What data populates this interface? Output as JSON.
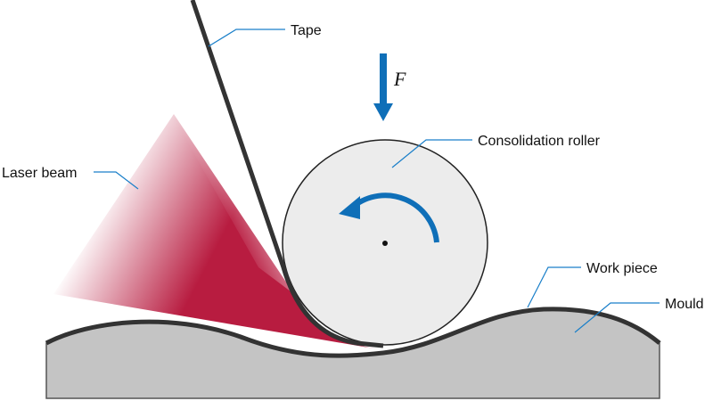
{
  "labels": {
    "tape": "Tape",
    "force": "F",
    "roller": "Consolidation roller",
    "laser": "Laser beam",
    "workpiece": "Work piece",
    "mould": "Mould"
  },
  "colors": {
    "laser": "#b81c40",
    "leader": "#1a7fc9",
    "arrow": "#0f6fb8",
    "roller": "#ececec",
    "mould": "#c4c4c4",
    "tape": "#333333"
  }
}
